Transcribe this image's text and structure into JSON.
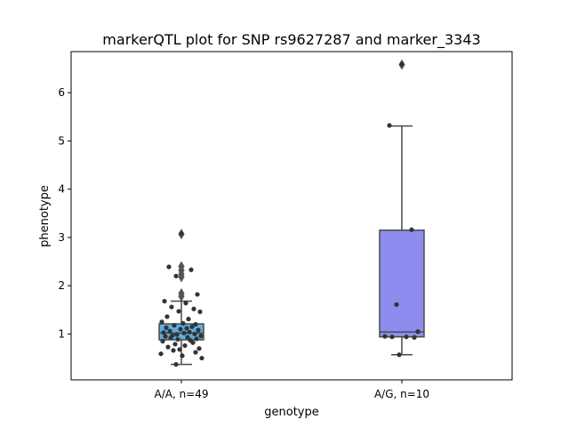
{
  "chart_data": {
    "type": "box",
    "title": "markerQTL plot for SNP rs9627287 and marker_3343",
    "xlabel": "genotype",
    "ylabel": "phenotype",
    "ylim": [
      0.05,
      6.85
    ],
    "yticks": [
      1,
      2,
      3,
      4,
      5,
      6
    ],
    "grid": false,
    "groups": [
      {
        "label": "A/A, n=49",
        "color": "#5DADE2",
        "box": {
          "q1": 0.88,
          "median": 1.02,
          "q3": 1.21,
          "whisker_low": 0.37,
          "whisker_high": 1.68
        },
        "outliers": [
          1.78,
          1.84,
          2.18,
          2.24,
          2.32,
          2.4,
          3.07
        ],
        "points": [
          3.08,
          2.39,
          2.33,
          2.2,
          1.82,
          1.68,
          1.64,
          1.56,
          1.52,
          1.47,
          1.46,
          1.36,
          1.31,
          1.25,
          1.22,
          1.2,
          1.18,
          1.15,
          1.13,
          1.12,
          1.1,
          1.08,
          1.06,
          1.04,
          1.03,
          1.02,
          1.0,
          0.99,
          0.97,
          0.96,
          0.95,
          0.93,
          0.92,
          0.9,
          0.89,
          0.87,
          0.85,
          0.82,
          0.79,
          0.76,
          0.73,
          0.7,
          0.68,
          0.66,
          0.62,
          0.59,
          0.55,
          0.5,
          0.37
        ]
      },
      {
        "label": "A/G, n=10",
        "color": "#8E8CEE",
        "box": {
          "q1": 0.94,
          "median": 1.04,
          "q3": 3.15,
          "whisker_low": 0.57,
          "whisker_high": 5.31
        },
        "outliers": [
          6.58
        ],
        "points": [
          6.59,
          5.32,
          3.16,
          1.61,
          1.05,
          0.95,
          0.94,
          0.94,
          0.93,
          0.57
        ]
      }
    ]
  }
}
